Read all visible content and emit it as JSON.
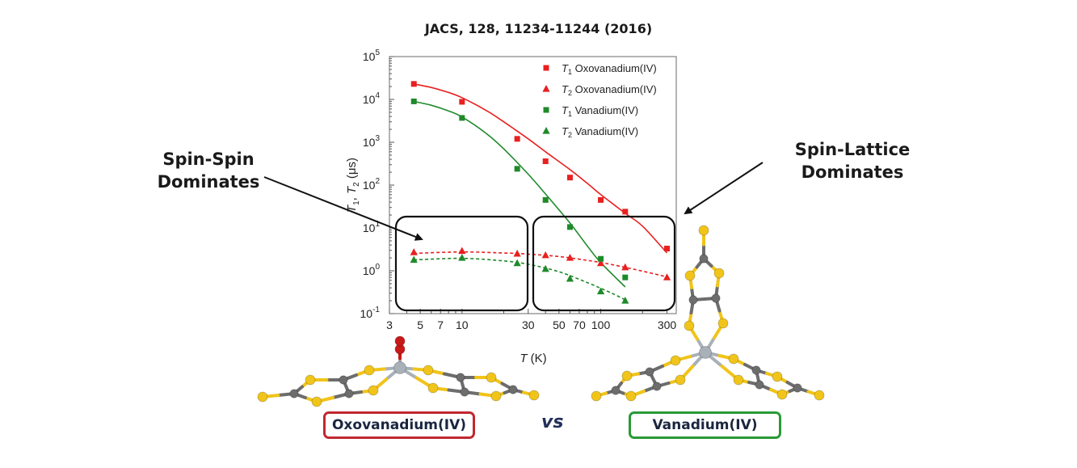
{
  "header": {
    "citation": "JACS, 128, 11234-11244 (2016)"
  },
  "annotations": {
    "left": [
      "Spin-Spin",
      "Dominates"
    ],
    "right": [
      "Spin-Lattice",
      "Dominates"
    ]
  },
  "labels": {
    "left_compound": "Oxovanadium(IV)",
    "vs": "vs",
    "right_compound": "Vanadium(IV)"
  },
  "colors": {
    "red": "#e8201f",
    "green": "#1f8a2a",
    "box_red": "#c0282e",
    "box_green": "#2a9a36",
    "sulfur": "#f1c419",
    "carbon": "#6d6d6d",
    "vanadium": "#a8b0b8",
    "oxygen": "#c81818"
  },
  "chart_data": {
    "type": "scatter",
    "xlabel": "T (K)",
    "ylabel": "T1, T2 (μs)",
    "xscale": "log",
    "yscale": "log",
    "xlim": [
      3,
      350
    ],
    "ylim": [
      0.1,
      100000
    ],
    "xticks": [
      3,
      5,
      7,
      10,
      30,
      50,
      70,
      100,
      300
    ],
    "xtick_labels": [
      "3",
      "5",
      "7",
      "10",
      "30",
      "50",
      "70",
      "100",
      "300"
    ],
    "yticks": [
      0.1,
      1,
      10,
      100,
      1000,
      10000,
      100000
    ],
    "ytick_exponents": [
      "-1",
      "0",
      "1",
      "2",
      "3",
      "4",
      "5"
    ],
    "legend_position": "top-right",
    "series": [
      {
        "name": "T1 Oxovanadium(IV)",
        "symbol": "T",
        "subscript": "1",
        "compound": "Oxovanadium(IV)",
        "marker": "square",
        "color": "#e8201f",
        "fit": "solid",
        "x": [
          4.5,
          10,
          25,
          40,
          60,
          100,
          150,
          300
        ],
        "y": [
          23000,
          8800,
          1200,
          360,
          150,
          45,
          24,
          3.3
        ]
      },
      {
        "name": "T2 Oxovanadium(IV)",
        "symbol": "T",
        "subscript": "2",
        "compound": "Oxovanadium(IV)",
        "marker": "triangle",
        "color": "#e8201f",
        "fit": "dashed",
        "x": [
          4.5,
          10,
          25,
          40,
          60,
          100,
          150,
          300
        ],
        "y": [
          2.7,
          2.9,
          2.5,
          2.3,
          2.0,
          1.5,
          1.2,
          0.7
        ]
      },
      {
        "name": "T1 Vanadium(IV)",
        "symbol": "T",
        "subscript": "1",
        "compound": "Vanadium(IV)",
        "marker": "square",
        "color": "#1f8a2a",
        "fit": "solid",
        "x": [
          4.5,
          10,
          25,
          40,
          60,
          100,
          150
        ],
        "y": [
          9000,
          3700,
          240,
          45,
          10.5,
          1.9,
          0.7
        ]
      },
      {
        "name": "T2 Vanadium(IV)",
        "symbol": "T",
        "subscript": "2",
        "compound": "Vanadium(IV)",
        "marker": "triangle",
        "color": "#1f8a2a",
        "fit": "dashed",
        "x": [
          4.5,
          10,
          25,
          40,
          60,
          100,
          150
        ],
        "y": [
          1.8,
          2.0,
          1.5,
          1.1,
          0.65,
          0.33,
          0.2
        ]
      }
    ],
    "fits": [
      {
        "series": "T1 Oxovanadium(IV)",
        "x": [
          4.5,
          6,
          8,
          10,
          15,
          20,
          30,
          40,
          60,
          80,
          100,
          150,
          200,
          300
        ],
        "y": [
          23000,
          19000,
          14500,
          11000,
          5500,
          3000,
          1200,
          600,
          230,
          110,
          60,
          22,
          11,
          2.6
        ]
      },
      {
        "series": "T1 Vanadium(IV)",
        "x": [
          4.5,
          6,
          8,
          10,
          15,
          20,
          30,
          40,
          60,
          80,
          100,
          150
        ],
        "y": [
          9000,
          7300,
          5400,
          3900,
          1600,
          700,
          180,
          62,
          13,
          3.8,
          1.55,
          0.42
        ]
      },
      {
        "series": "T2 Oxovanadium(IV)",
        "x": [
          4.5,
          10,
          20,
          30,
          50,
          80,
          120,
          200,
          300
        ],
        "y": [
          2.55,
          2.75,
          2.6,
          2.45,
          2.15,
          1.75,
          1.4,
          0.98,
          0.72
        ]
      },
      {
        "series": "T2 Vanadium(IV)",
        "x": [
          4.5,
          10,
          20,
          30,
          50,
          80,
          120,
          150
        ],
        "y": [
          1.8,
          1.95,
          1.7,
          1.42,
          0.95,
          0.53,
          0.3,
          0.21
        ]
      }
    ]
  }
}
